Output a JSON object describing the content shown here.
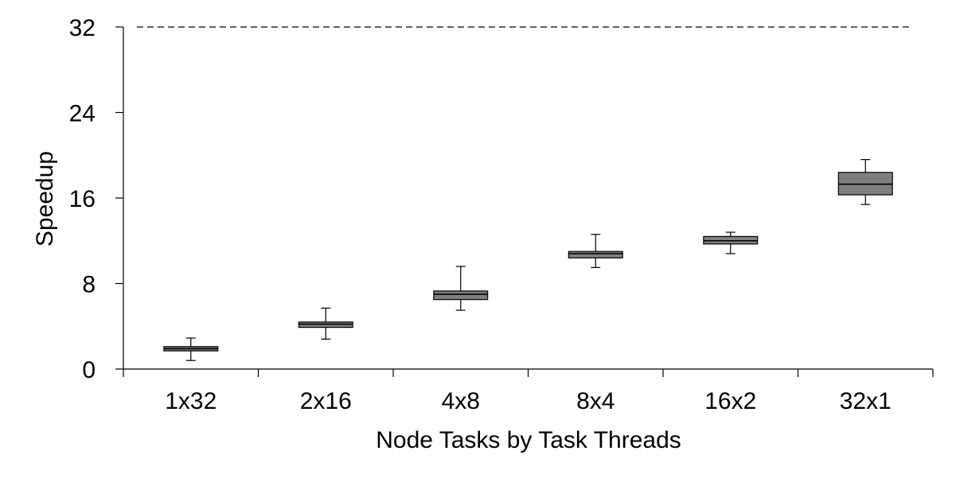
{
  "chart_data": {
    "type": "box",
    "xlabel": "Node Tasks by Task Threads",
    "ylabel": "Speedup",
    "ylim": [
      0,
      32
    ],
    "yticks": [
      0,
      8,
      16,
      24,
      32
    ],
    "grid": false,
    "reference_line": {
      "y": 32,
      "style": "dashed"
    },
    "categories": [
      "1x32",
      "2x16",
      "4x8",
      "8x4",
      "16x2",
      "32x1"
    ],
    "boxes": [
      {
        "min": 0.8,
        "q1": 1.7,
        "median": 1.9,
        "q3": 2.1,
        "max": 2.9
      },
      {
        "min": 2.8,
        "q1": 3.9,
        "median": 4.2,
        "q3": 4.4,
        "max": 5.7
      },
      {
        "min": 5.5,
        "q1": 6.5,
        "median": 7.0,
        "q3": 7.3,
        "max": 9.6
      },
      {
        "min": 9.5,
        "q1": 10.4,
        "median": 10.8,
        "q3": 11.0,
        "max": 12.6
      },
      {
        "min": 10.8,
        "q1": 11.7,
        "median": 12.0,
        "q3": 12.4,
        "max": 12.8
      },
      {
        "min": 15.4,
        "q1": 16.3,
        "median": 17.3,
        "q3": 18.4,
        "max": 19.6
      }
    ]
  }
}
